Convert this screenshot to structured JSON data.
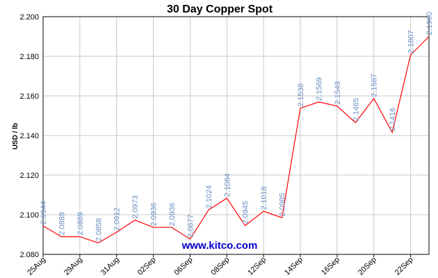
{
  "watermark": "www.kitco.com",
  "colors": {
    "line": "#ff0000",
    "data_label": "#6a8fc4",
    "grid": "#c8c8c8",
    "watermark": "#0000cc"
  },
  "chart_data": {
    "type": "line",
    "title": "30 Day Copper Spot",
    "xlabel": "",
    "ylabel": "USD / lb",
    "ylim": [
      2.08,
      2.2
    ],
    "yticks": [
      "2.080",
      "2.100",
      "2.120",
      "2.140",
      "2.160",
      "2.180",
      "2.200"
    ],
    "xtick_labels": [
      "25Aug",
      "29Aug",
      "31Aug",
      "02Sep",
      "06Sep",
      "08Sep",
      "12Sep",
      "14Sep",
      "16Sep",
      "20Sep",
      "22Sep"
    ],
    "grid": true,
    "series": [
      {
        "values": [
          2.0944,
          2.0889,
          2.0889,
          2.0858,
          2.0912,
          2.0973,
          2.0936,
          2.0936,
          2.0877,
          2.1024,
          2.1084,
          2.0945,
          2.1018,
          2.0985,
          2.1538,
          2.1569,
          2.1549,
          2.1465,
          2.1587,
          2.1416,
          2.1807,
          2.19
        ],
        "labels": [
          "2.0944",
          "2.0889",
          "2.0889",
          "2.0858",
          "2.0912",
          "2.0973",
          "2.0936",
          "2.0936",
          "2.0877",
          "2.1024",
          "2.1084",
          "2.0945",
          "2.1018",
          "2.0985",
          "2.1538",
          "2.1569",
          "2.1549",
          "2.1465",
          "2.1587",
          "2.1416",
          "2.1807",
          "2.1900"
        ]
      }
    ]
  }
}
